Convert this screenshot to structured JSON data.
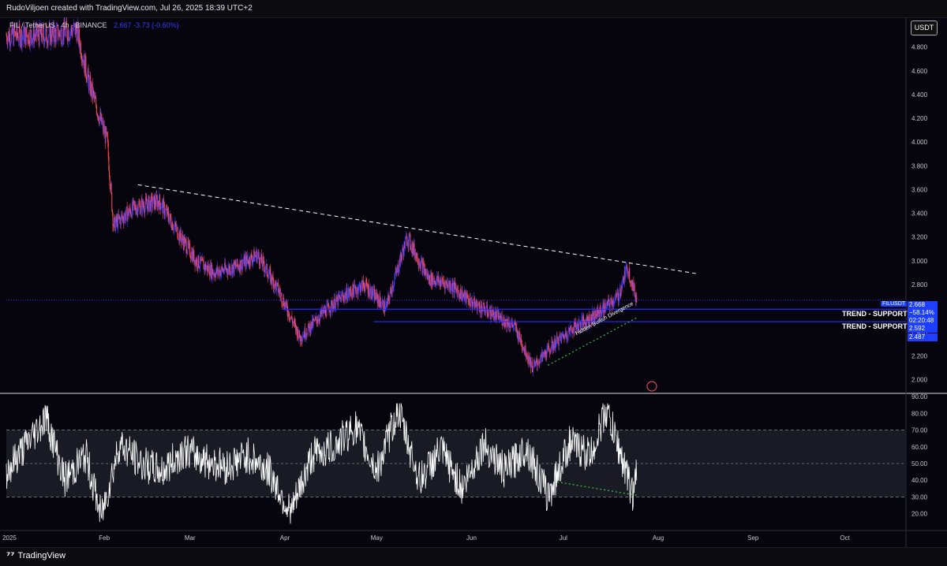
{
  "header": {
    "title": "RudoViljoen created with TradingView.com, Jul 26, 2025 18:39 UTC+2"
  },
  "legend": {
    "symbol_line": "FIL / TetherUS · 4h · BINANCE",
    "ohlc_values": "2.667 -3.73 (-0.60%)"
  },
  "currency_button": "USDT",
  "price_tags": {
    "symbol": "FILUSDT",
    "last_price": "2.668",
    "change": "−58.14%",
    "countdown": "02:20:48",
    "support1_price": "2.592",
    "support2_price": "2.487"
  },
  "labels": {
    "trend_support_1": "TREND - SUPPORT",
    "trend_support_2": "TREND - SUPPORT",
    "divergence": "Hidden Bullish Divergence"
  },
  "footer": {
    "brand": "TradingView"
  },
  "colors": {
    "up_candle": "#3b3bff",
    "down_candle": "#ff4d4d",
    "support_line": "#2a2aff",
    "rsi_line": "#ffffff",
    "divergence": "#2ecc40",
    "trendline": "#ffffff"
  },
  "chart_data": [
    {
      "type": "line",
      "name": "FIL/USDT 4h price (approx. close)",
      "x": [
        "2025-01-01",
        "2025-01-15",
        "2025-01-24",
        "2025-01-28",
        "2025-02-03",
        "2025-02-05",
        "2025-02-12",
        "2025-02-20",
        "2025-02-27",
        "2025-03-04",
        "2025-03-10",
        "2025-03-17",
        "2025-03-24",
        "2025-03-31",
        "2025-04-07",
        "2025-04-14",
        "2025-04-21",
        "2025-04-28",
        "2025-05-05",
        "2025-05-12",
        "2025-05-19",
        "2025-05-26",
        "2025-06-02",
        "2025-06-09",
        "2025-06-16",
        "2025-06-22",
        "2025-06-29",
        "2025-07-06",
        "2025-07-13",
        "2025-07-20",
        "2025-07-23",
        "2025-07-26"
      ],
      "values": [
        4.9,
        4.9,
        4.95,
        4.5,
        4.0,
        3.3,
        3.45,
        3.5,
        3.2,
        3.0,
        2.9,
        2.95,
        3.05,
        2.75,
        2.35,
        2.55,
        2.7,
        2.8,
        2.6,
        3.2,
        2.85,
        2.8,
        2.65,
        2.55,
        2.45,
        2.1,
        2.3,
        2.45,
        2.55,
        2.7,
        2.95,
        2.668
      ],
      "ylim": [
        1.95,
        5.0
      ],
      "y_ticks": [
        2.0,
        2.2,
        2.4,
        2.6,
        2.8,
        3.0,
        3.2,
        3.4,
        3.6,
        3.8,
        4.0,
        4.2,
        4.4,
        4.6,
        4.8
      ],
      "y_tick_labels": [
        "2.000",
        "2.200",
        "2.400",
        "2.600",
        "2.800",
        "3.000",
        "3.200",
        "3.400",
        "3.600",
        "3.800",
        "4.000",
        "4.200",
        "4.400",
        "4.600",
        "4.800"
      ],
      "annotations": [
        {
          "kind": "descending trendline",
          "from": [
            "2025-02-13",
            3.64
          ],
          "to": [
            "2025-08-15",
            2.89
          ]
        },
        {
          "kind": "horizontal support",
          "label": "TREND - SUPPORT",
          "value": 2.592
        },
        {
          "kind": "horizontal support",
          "label": "TREND - SUPPORT",
          "value": 2.487
        },
        {
          "kind": "rising divergence line",
          "label": "Hidden Bullish Divergence",
          "from": [
            "2025-06-27",
            2.12
          ],
          "to": [
            "2025-07-26",
            2.52
          ]
        },
        {
          "kind": "dotted last price",
          "value": 2.668
        }
      ],
      "grid": false
    },
    {
      "type": "line",
      "name": "RSI",
      "x": [
        "2025-01-01",
        "2025-01-07",
        "2025-01-14",
        "2025-01-20",
        "2025-01-27",
        "2025-02-01",
        "2025-02-07",
        "2025-02-14",
        "2025-02-21",
        "2025-02-28",
        "2025-03-07",
        "2025-03-14",
        "2025-03-21",
        "2025-03-28",
        "2025-04-04",
        "2025-04-11",
        "2025-04-18",
        "2025-04-25",
        "2025-05-02",
        "2025-05-09",
        "2025-05-16",
        "2025-05-23",
        "2025-05-30",
        "2025-06-06",
        "2025-06-13",
        "2025-06-20",
        "2025-06-27",
        "2025-07-04",
        "2025-07-11",
        "2025-07-16",
        "2025-07-20",
        "2025-07-25",
        "2025-07-26"
      ],
      "values": [
        45,
        60,
        78,
        40,
        55,
        18,
        62,
        50,
        45,
        58,
        52,
        48,
        55,
        45,
        20,
        55,
        60,
        72,
        45,
        82,
        40,
        58,
        35,
        62,
        45,
        60,
        30,
        62,
        55,
        82,
        60,
        30,
        48
      ],
      "ylim": [
        10,
        90
      ],
      "y_ticks": [
        20,
        30,
        40,
        50,
        60,
        70,
        80,
        90
      ],
      "y_tick_labels": [
        "20.00",
        "30.00",
        "40.00",
        "50.00",
        "60.00",
        "70.00",
        "80.00",
        "90.00"
      ],
      "bands": {
        "upper": 70,
        "lower": 30,
        "mid": 50
      },
      "annotations": [
        {
          "kind": "falling divergence line",
          "from": [
            "2025-06-30",
            39
          ],
          "to": [
            "2025-07-26",
            31
          ]
        }
      ]
    }
  ],
  "x_axis": {
    "labels": [
      "2025",
      "Feb",
      "Mar",
      "Apr",
      "May",
      "Jun",
      "Jul",
      "Aug",
      "Sep",
      "Oct"
    ]
  }
}
